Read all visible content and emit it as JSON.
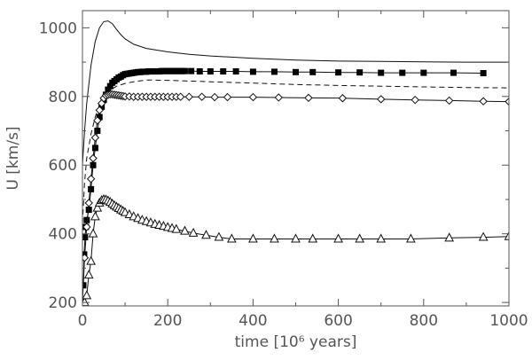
{
  "chart_data": {
    "type": "line",
    "xlabel": "time [10⁶ years]",
    "ylabel": "U [km/s]",
    "xlim": [
      0,
      1000
    ],
    "ylim": [
      190,
      1050
    ],
    "x_ticks": [
      0,
      200,
      400,
      600,
      800,
      1000
    ],
    "y_ticks": [
      200,
      400,
      600,
      800,
      1000
    ],
    "grid": false,
    "legend": "none",
    "series": [
      {
        "line": "solid",
        "marker": "none",
        "x": [
          0,
          5,
          10,
          20,
          30,
          40,
          50,
          60,
          70,
          80,
          90,
          100,
          120,
          150,
          200,
          250,
          300,
          400,
          500,
          600,
          700,
          800,
          900,
          1000
        ],
        "y": [
          600,
          700,
          780,
          890,
          960,
          1000,
          1018,
          1020,
          1012,
          995,
          980,
          968,
          952,
          940,
          930,
          923,
          918,
          911,
          906,
          903,
          902,
          901,
          900,
          900
        ]
      },
      {
        "line": "dashed",
        "marker": "none",
        "x": [
          0,
          5,
          10,
          20,
          30,
          40,
          50,
          60,
          80,
          100,
          120,
          150,
          200,
          300,
          400,
          500,
          600,
          700,
          800,
          900,
          1000
        ],
        "y": [
          430,
          550,
          620,
          690,
          740,
          775,
          800,
          815,
          830,
          838,
          843,
          848,
          847,
          843,
          839,
          835,
          832,
          830,
          828,
          826,
          825
        ]
      },
      {
        "line": "solid",
        "marker": "filled-square",
        "x": [
          2,
          4,
          6,
          8,
          10,
          15,
          20,
          25,
          30,
          35,
          40,
          45,
          50,
          55,
          60,
          65,
          70,
          75,
          80,
          85,
          90,
          95,
          100,
          105,
          110,
          115,
          120,
          125,
          130,
          135,
          140,
          145,
          150,
          155,
          160,
          165,
          170,
          175,
          180,
          185,
          190,
          195,
          200,
          205,
          210,
          215,
          220,
          225,
          230,
          235,
          240,
          255,
          275,
          300,
          330,
          360,
          400,
          450,
          500,
          540,
          600,
          650,
          700,
          750,
          800,
          870,
          940
        ],
        "y": [
          250,
          340,
          390,
          420,
          440,
          470,
          530,
          600,
          650,
          700,
          740,
          770,
          790,
          805,
          820,
          830,
          840,
          845,
          850,
          855,
          858,
          862,
          865,
          866,
          867,
          868,
          869,
          870,
          871,
          871,
          872,
          872,
          872,
          873,
          873,
          873,
          873,
          873,
          873,
          874,
          874,
          874,
          874,
          874,
          874,
          874,
          874,
          874,
          874,
          874,
          874,
          874,
          873,
          873,
          873,
          873,
          872,
          872,
          871,
          871,
          870,
          870,
          869,
          869,
          869,
          869,
          868
        ]
      },
      {
        "line": "solid",
        "marker": "diamond",
        "x": [
          0,
          5,
          10,
          15,
          20,
          25,
          30,
          35,
          40,
          45,
          50,
          55,
          60,
          65,
          70,
          75,
          80,
          85,
          90,
          95,
          100,
          110,
          120,
          130,
          140,
          150,
          160,
          170,
          180,
          190,
          200,
          210,
          220,
          230,
          250,
          280,
          310,
          340,
          400,
          460,
          530,
          610,
          700,
          780,
          860,
          940,
          1000
        ],
        "y": [
          200,
          330,
          420,
          490,
          560,
          620,
          680,
          730,
          760,
          780,
          795,
          803,
          805,
          806,
          806,
          805,
          804,
          803,
          802,
          801,
          800,
          800,
          799,
          799,
          799,
          799,
          799,
          799,
          799,
          799,
          799,
          799,
          799,
          799,
          799,
          799,
          798,
          798,
          798,
          797,
          796,
          795,
          792,
          790,
          788,
          786,
          785
        ]
      },
      {
        "line": "solid",
        "marker": "triangle",
        "x": [
          0,
          5,
          10,
          15,
          20,
          25,
          30,
          35,
          40,
          45,
          50,
          55,
          60,
          65,
          70,
          75,
          80,
          85,
          90,
          95,
          100,
          110,
          120,
          130,
          140,
          150,
          160,
          170,
          180,
          190,
          200,
          210,
          220,
          240,
          260,
          290,
          320,
          350,
          400,
          450,
          500,
          540,
          600,
          650,
          700,
          770,
          860,
          940,
          1000
        ],
        "y": [
          130,
          200,
          220,
          280,
          320,
          400,
          450,
          475,
          490,
          497,
          500,
          499,
          496,
          492,
          487,
          482,
          478,
          474,
          470,
          466,
          462,
          456,
          450,
          445,
          440,
          436,
          432,
          428,
          425,
          422,
          419,
          416,
          413,
          408,
          402,
          396,
          390,
          385,
          385,
          385,
          385,
          385,
          385,
          385,
          385,
          385,
          388,
          390,
          392
        ]
      }
    ]
  }
}
